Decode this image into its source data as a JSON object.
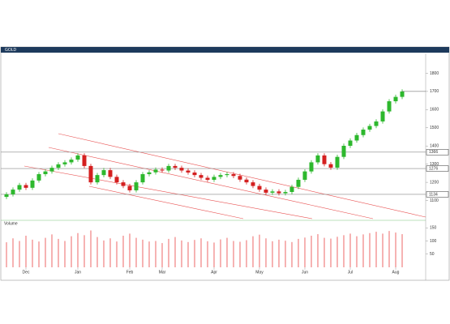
{
  "chart_data": {
    "type": "candlestick",
    "title": "GOLD",
    "volume_title": "Volume",
    "categories": [
      null,
      null,
      null,
      "Dec",
      null,
      null,
      null,
      null,
      null,
      null,
      null,
      "Jan",
      null,
      null,
      null,
      null,
      null,
      null,
      null,
      "Feb",
      null,
      null,
      null,
      null,
      "Mar",
      null,
      null,
      null,
      null,
      null,
      null,
      null,
      "Apr",
      null,
      null,
      null,
      null,
      null,
      null,
      "May",
      null,
      null,
      null,
      null,
      null,
      null,
      "Jun",
      null,
      null,
      null,
      null,
      null,
      null,
      "Jul",
      null,
      null,
      null,
      null,
      null,
      null,
      "Aug",
      null
    ],
    "open": [
      1120,
      1134,
      1160,
      1185,
      1170,
      1210,
      1245,
      1260,
      1280,
      1299,
      1310,
      1325,
      1348,
      1290,
      1200,
      1240,
      1267,
      1230,
      1200,
      1180,
      1156,
      1200,
      1245,
      1255,
      1270,
      1265,
      1290,
      1280,
      1265,
      1254,
      1240,
      1225,
      1214,
      1230,
      1240,
      1245,
      1235,
      1215,
      1200,
      1180,
      1160,
      1143,
      1150,
      1140,
      1147,
      1175,
      1214,
      1260,
      1310,
      1348,
      1300,
      1281,
      1340,
      1401,
      1430,
      1460,
      1490,
      1510,
      1535,
      1590,
      1646,
      1670
    ],
    "high": [
      1146,
      1172,
      1197,
      1197,
      1222,
      1257,
      1272,
      1292,
      1311,
      1322,
      1337,
      1360,
      1360,
      1302,
      1252,
      1279,
      1279,
      1242,
      1212,
      1192,
      1212,
      1257,
      1267,
      1282,
      1282,
      1302,
      1302,
      1292,
      1277,
      1266,
      1252,
      1237,
      1242,
      1252,
      1257,
      1257,
      1247,
      1227,
      1212,
      1192,
      1172,
      1162,
      1162,
      1159,
      1187,
      1226,
      1272,
      1322,
      1360,
      1360,
      1312,
      1352,
      1413,
      1442,
      1472,
      1502,
      1522,
      1547,
      1602,
      1658,
      1682,
      1712
    ],
    "low": [
      1108,
      1122,
      1148,
      1158,
      1158,
      1198,
      1233,
      1248,
      1268,
      1287,
      1298,
      1313,
      1278,
      1188,
      1188,
      1228,
      1218,
      1188,
      1168,
      1144,
      1144,
      1188,
      1233,
      1243,
      1253,
      1253,
      1268,
      1253,
      1242,
      1228,
      1213,
      1202,
      1202,
      1218,
      1228,
      1223,
      1203,
      1188,
      1168,
      1148,
      1131,
      1131,
      1128,
      1128,
      1135,
      1163,
      1202,
      1248,
      1298,
      1288,
      1269,
      1269,
      1328,
      1389,
      1418,
      1448,
      1478,
      1498,
      1523,
      1578,
      1634,
      1658
    ],
    "close": [
      1134,
      1160,
      1185,
      1170,
      1210,
      1245,
      1260,
      1280,
      1299,
      1310,
      1325,
      1348,
      1290,
      1200,
      1240,
      1267,
      1230,
      1200,
      1180,
      1156,
      1200,
      1245,
      1255,
      1270,
      1265,
      1290,
      1280,
      1265,
      1254,
      1240,
      1225,
      1214,
      1230,
      1240,
      1245,
      1235,
      1215,
      1200,
      1180,
      1160,
      1143,
      1150,
      1140,
      1147,
      1175,
      1214,
      1260,
      1310,
      1348,
      1300,
      1281,
      1340,
      1401,
      1430,
      1460,
      1490,
      1510,
      1535,
      1590,
      1646,
      1670,
      1700
    ],
    "volume": [
      95,
      110,
      100,
      120,
      105,
      98,
      112,
      125,
      108,
      100,
      118,
      130,
      122,
      140,
      115,
      102,
      110,
      98,
      120,
      128,
      112,
      105,
      98,
      100,
      92,
      108,
      115,
      102,
      96,
      104,
      110,
      99,
      94,
      106,
      112,
      100,
      97,
      103,
      118,
      124,
      110,
      99,
      105,
      101,
      96,
      108,
      113,
      120,
      126,
      112,
      109,
      116,
      122,
      128,
      118,
      125,
      130,
      135,
      128,
      138,
      132,
      126
    ],
    "ylim": [
      1000,
      1900
    ],
    "yticks": [
      1100,
      1200,
      1300,
      1400,
      1500,
      1600,
      1700,
      1800
    ],
    "vol_ylim": [
      0,
      160
    ],
    "vol_yticks": [
      50,
      100,
      150
    ],
    "levels": [
      1366,
      1276,
      1134
    ],
    "up_color": "#2db82d",
    "down_color": "#d42020",
    "volume_color": "#f08080"
  }
}
